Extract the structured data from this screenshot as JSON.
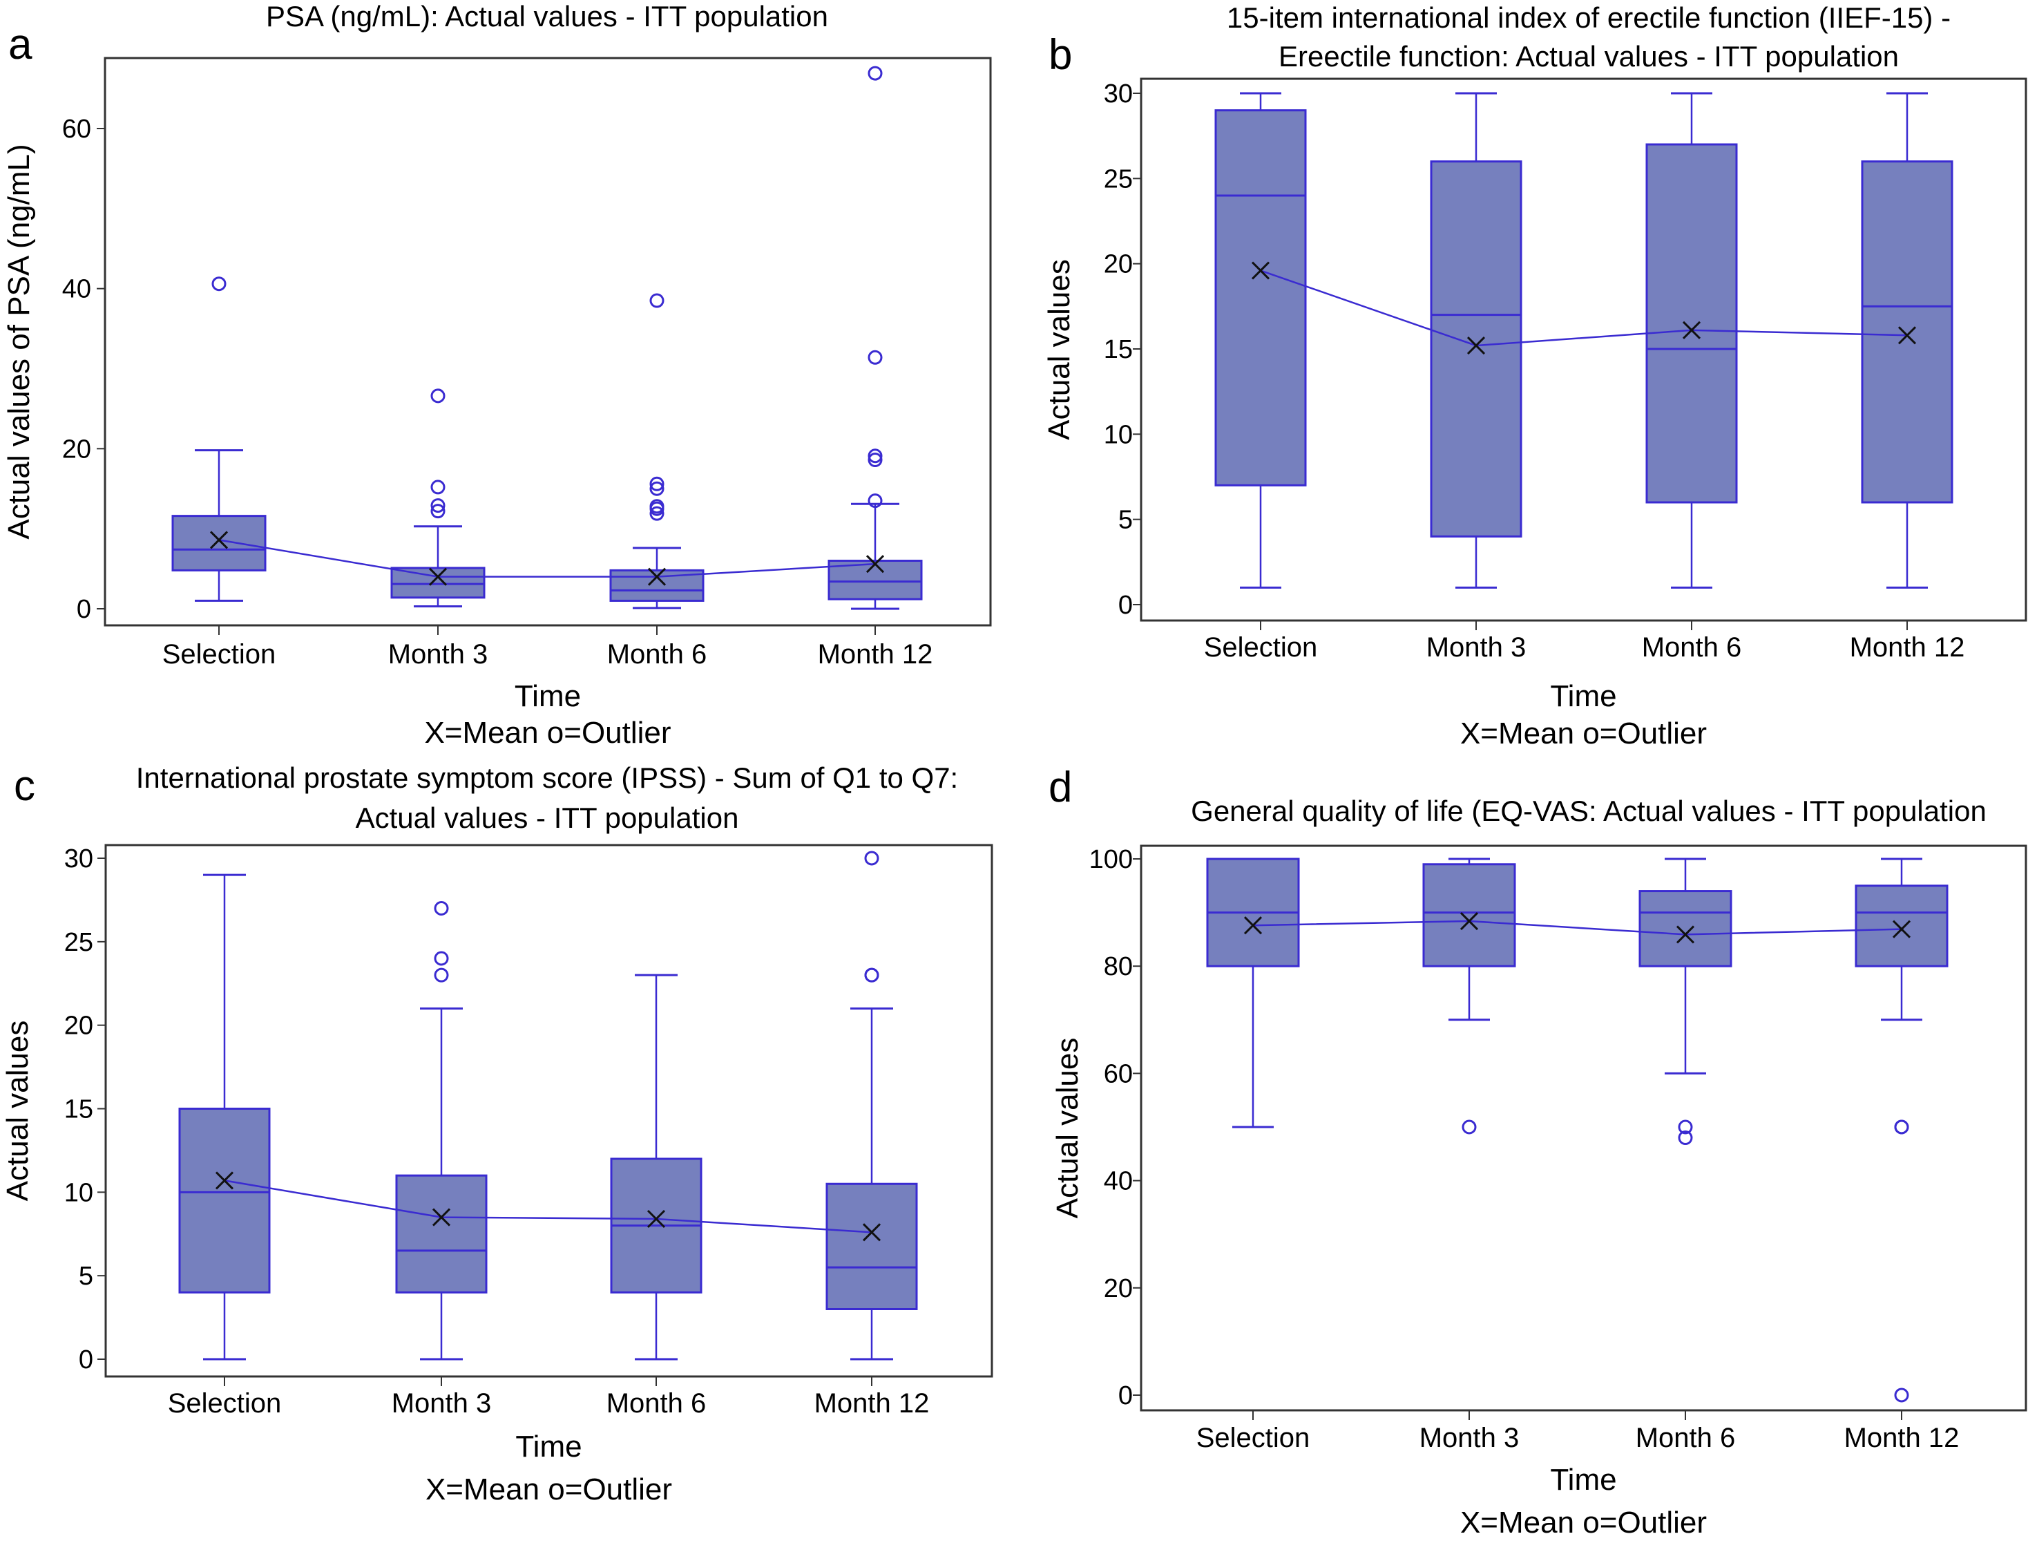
{
  "figure": {
    "legend_note": "X=Mean o=Outlier"
  },
  "colors": {
    "box_fill": "#7680be",
    "box_line": "#3a2bd1",
    "mean_marker": "#111111",
    "frame": "#333333"
  },
  "chart_data": [
    {
      "type": "boxplot",
      "panel_label": "a",
      "title": [
        "PSA (ng/mL): Actual values - ITT population"
      ],
      "xlabel": "Time",
      "ylabel": "Actual values of PSA (ng/mL)",
      "categories": [
        "Selection",
        "Month 3",
        "Month 6",
        "Month 12"
      ],
      "ylim": [
        -2.5,
        69
      ],
      "yticks": [
        0,
        20,
        40,
        60
      ],
      "boxes": [
        {
          "whisker_low": 1.0,
          "q1": 4.8,
          "median": 7.4,
          "q3": 11.6,
          "whisker_high": 19.8,
          "mean": 8.6,
          "outliers": [
            40.6
          ]
        },
        {
          "whisker_low": 0.3,
          "q1": 1.4,
          "median": 3.1,
          "q3": 5.1,
          "whisker_high": 10.3,
          "mean": 4.0,
          "outliers": [
            12.2,
            12.9,
            15.2,
            26.6
          ]
        },
        {
          "whisker_low": 0.1,
          "q1": 1.0,
          "median": 2.3,
          "q3": 4.8,
          "whisker_high": 7.6,
          "mean": 4.0,
          "outliers": [
            11.9,
            12.5,
            12.8,
            15.0,
            15.6,
            38.5
          ]
        },
        {
          "whisker_low": 0.0,
          "q1": 1.2,
          "median": 3.4,
          "q3": 6.0,
          "whisker_high": 13.1,
          "mean": 5.6,
          "outliers": [
            13.5,
            18.6,
            19.1,
            31.4,
            66.9
          ]
        }
      ]
    },
    {
      "type": "boxplot",
      "panel_label": "b",
      "title": [
        "15-item international index of erectile function (IIEF-15) -",
        "Ereectile function: Actual values - ITT population"
      ],
      "xlabel": "Time",
      "ylabel": "Actual values",
      "categories": [
        "Selection",
        "Month 3",
        "Month 6",
        "Month 12"
      ],
      "ylim": [
        -1.5,
        31
      ],
      "yticks": [
        0,
        5,
        10,
        15,
        20,
        25,
        30
      ],
      "boxes": [
        {
          "whisker_low": 1,
          "q1": 7,
          "median": 24,
          "q3": 29,
          "whisker_high": 30,
          "mean": 19.6,
          "outliers": []
        },
        {
          "whisker_low": 1,
          "q1": 4,
          "median": 17,
          "q3": 26,
          "whisker_high": 30,
          "mean": 15.2,
          "outliers": []
        },
        {
          "whisker_low": 1,
          "q1": 6,
          "median": 15,
          "q3": 27,
          "whisker_high": 30,
          "mean": 16.1,
          "outliers": []
        },
        {
          "whisker_low": 1,
          "q1": 6,
          "median": 17.5,
          "q3": 26,
          "whisker_high": 30,
          "mean": 15.8,
          "outliers": []
        }
      ]
    },
    {
      "type": "boxplot",
      "panel_label": "c",
      "title": [
        "International prostate symptom score (IPSS) - Sum of Q1 to Q7:",
        "Actual values - ITT population"
      ],
      "xlabel": "Time",
      "ylabel": "Actual values",
      "categories": [
        "Selection",
        "Month 3",
        "Month 6",
        "Month 12"
      ],
      "ylim": [
        -1,
        31
      ],
      "yticks": [
        0,
        5,
        10,
        15,
        20,
        25,
        30
      ],
      "boxes": [
        {
          "whisker_low": 0,
          "q1": 4,
          "median": 10,
          "q3": 15,
          "whisker_high": 29,
          "mean": 10.7,
          "outliers": []
        },
        {
          "whisker_low": 0,
          "q1": 4,
          "median": 6.5,
          "q3": 11,
          "whisker_high": 21,
          "mean": 8.5,
          "outliers": [
            23,
            24,
            27
          ]
        },
        {
          "whisker_low": 0,
          "q1": 4,
          "median": 8,
          "q3": 12,
          "whisker_high": 23,
          "mean": 8.4,
          "outliers": []
        },
        {
          "whisker_low": 0,
          "q1": 3,
          "median": 5.5,
          "q3": 10.5,
          "whisker_high": 21,
          "mean": 7.6,
          "outliers": [
            23,
            23,
            30
          ]
        }
      ]
    },
    {
      "type": "boxplot",
      "panel_label": "d",
      "title": [
        "General quality of life (EQ-VAS: Actual values - ITT population"
      ],
      "xlabel": "Time",
      "ylabel": "Actual values",
      "categories": [
        "Selection",
        "Month 3",
        "Month 6",
        "Month 12"
      ],
      "ylim": [
        -3,
        102.5
      ],
      "yticks": [
        0,
        20,
        40,
        60,
        80,
        100
      ],
      "boxes": [
        {
          "whisker_low": 50,
          "q1": 80,
          "median": 90,
          "q3": 100,
          "whisker_high": 100,
          "mean": 87.6,
          "outliers": []
        },
        {
          "whisker_low": 70,
          "q1": 80,
          "median": 90,
          "q3": 99,
          "whisker_high": 100,
          "mean": 88.4,
          "outliers": [
            50
          ]
        },
        {
          "whisker_low": 60,
          "q1": 80,
          "median": 90,
          "q3": 94,
          "whisker_high": 100,
          "mean": 85.9,
          "outliers": [
            48,
            50
          ]
        },
        {
          "whisker_low": 70,
          "q1": 80,
          "median": 90,
          "q3": 95,
          "whisker_high": 100,
          "mean": 86.9,
          "outliers": [
            0,
            50,
            50
          ]
        }
      ]
    }
  ]
}
